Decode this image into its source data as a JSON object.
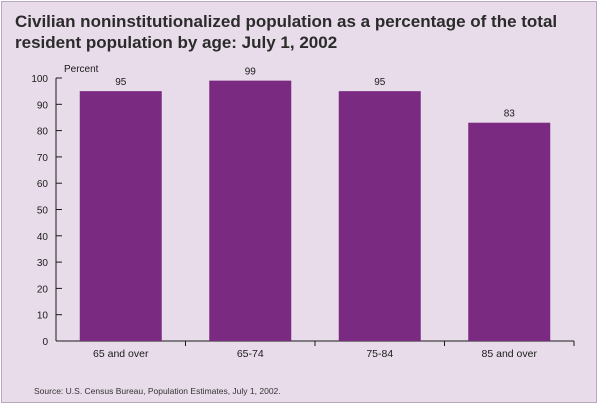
{
  "chart_data": {
    "type": "bar",
    "title": "Civilian noninstitutionalized population as a percentage of the total resident population by age: July 1, 2002",
    "ylabel": "Percent",
    "xlabel": "",
    "categories": [
      "65 and over",
      "65-74",
      "75-84",
      "85 and over"
    ],
    "values": [
      95,
      99,
      95,
      83
    ],
    "value_labels": [
      "95",
      "99",
      "95",
      "83"
    ],
    "ylim": [
      0,
      100
    ],
    "yticks": [
      "0",
      "10",
      "20",
      "30",
      "40",
      "50",
      "60",
      "70",
      "80",
      "90",
      "100"
    ],
    "grid": false,
    "legend": "none",
    "source": "Source: U.S. Census Bureau, Population Estimates, July 1, 2002.",
    "colors": {
      "bar": "#7b2a82",
      "background": "#e8dcea",
      "axis": "#1a1a1a"
    }
  }
}
